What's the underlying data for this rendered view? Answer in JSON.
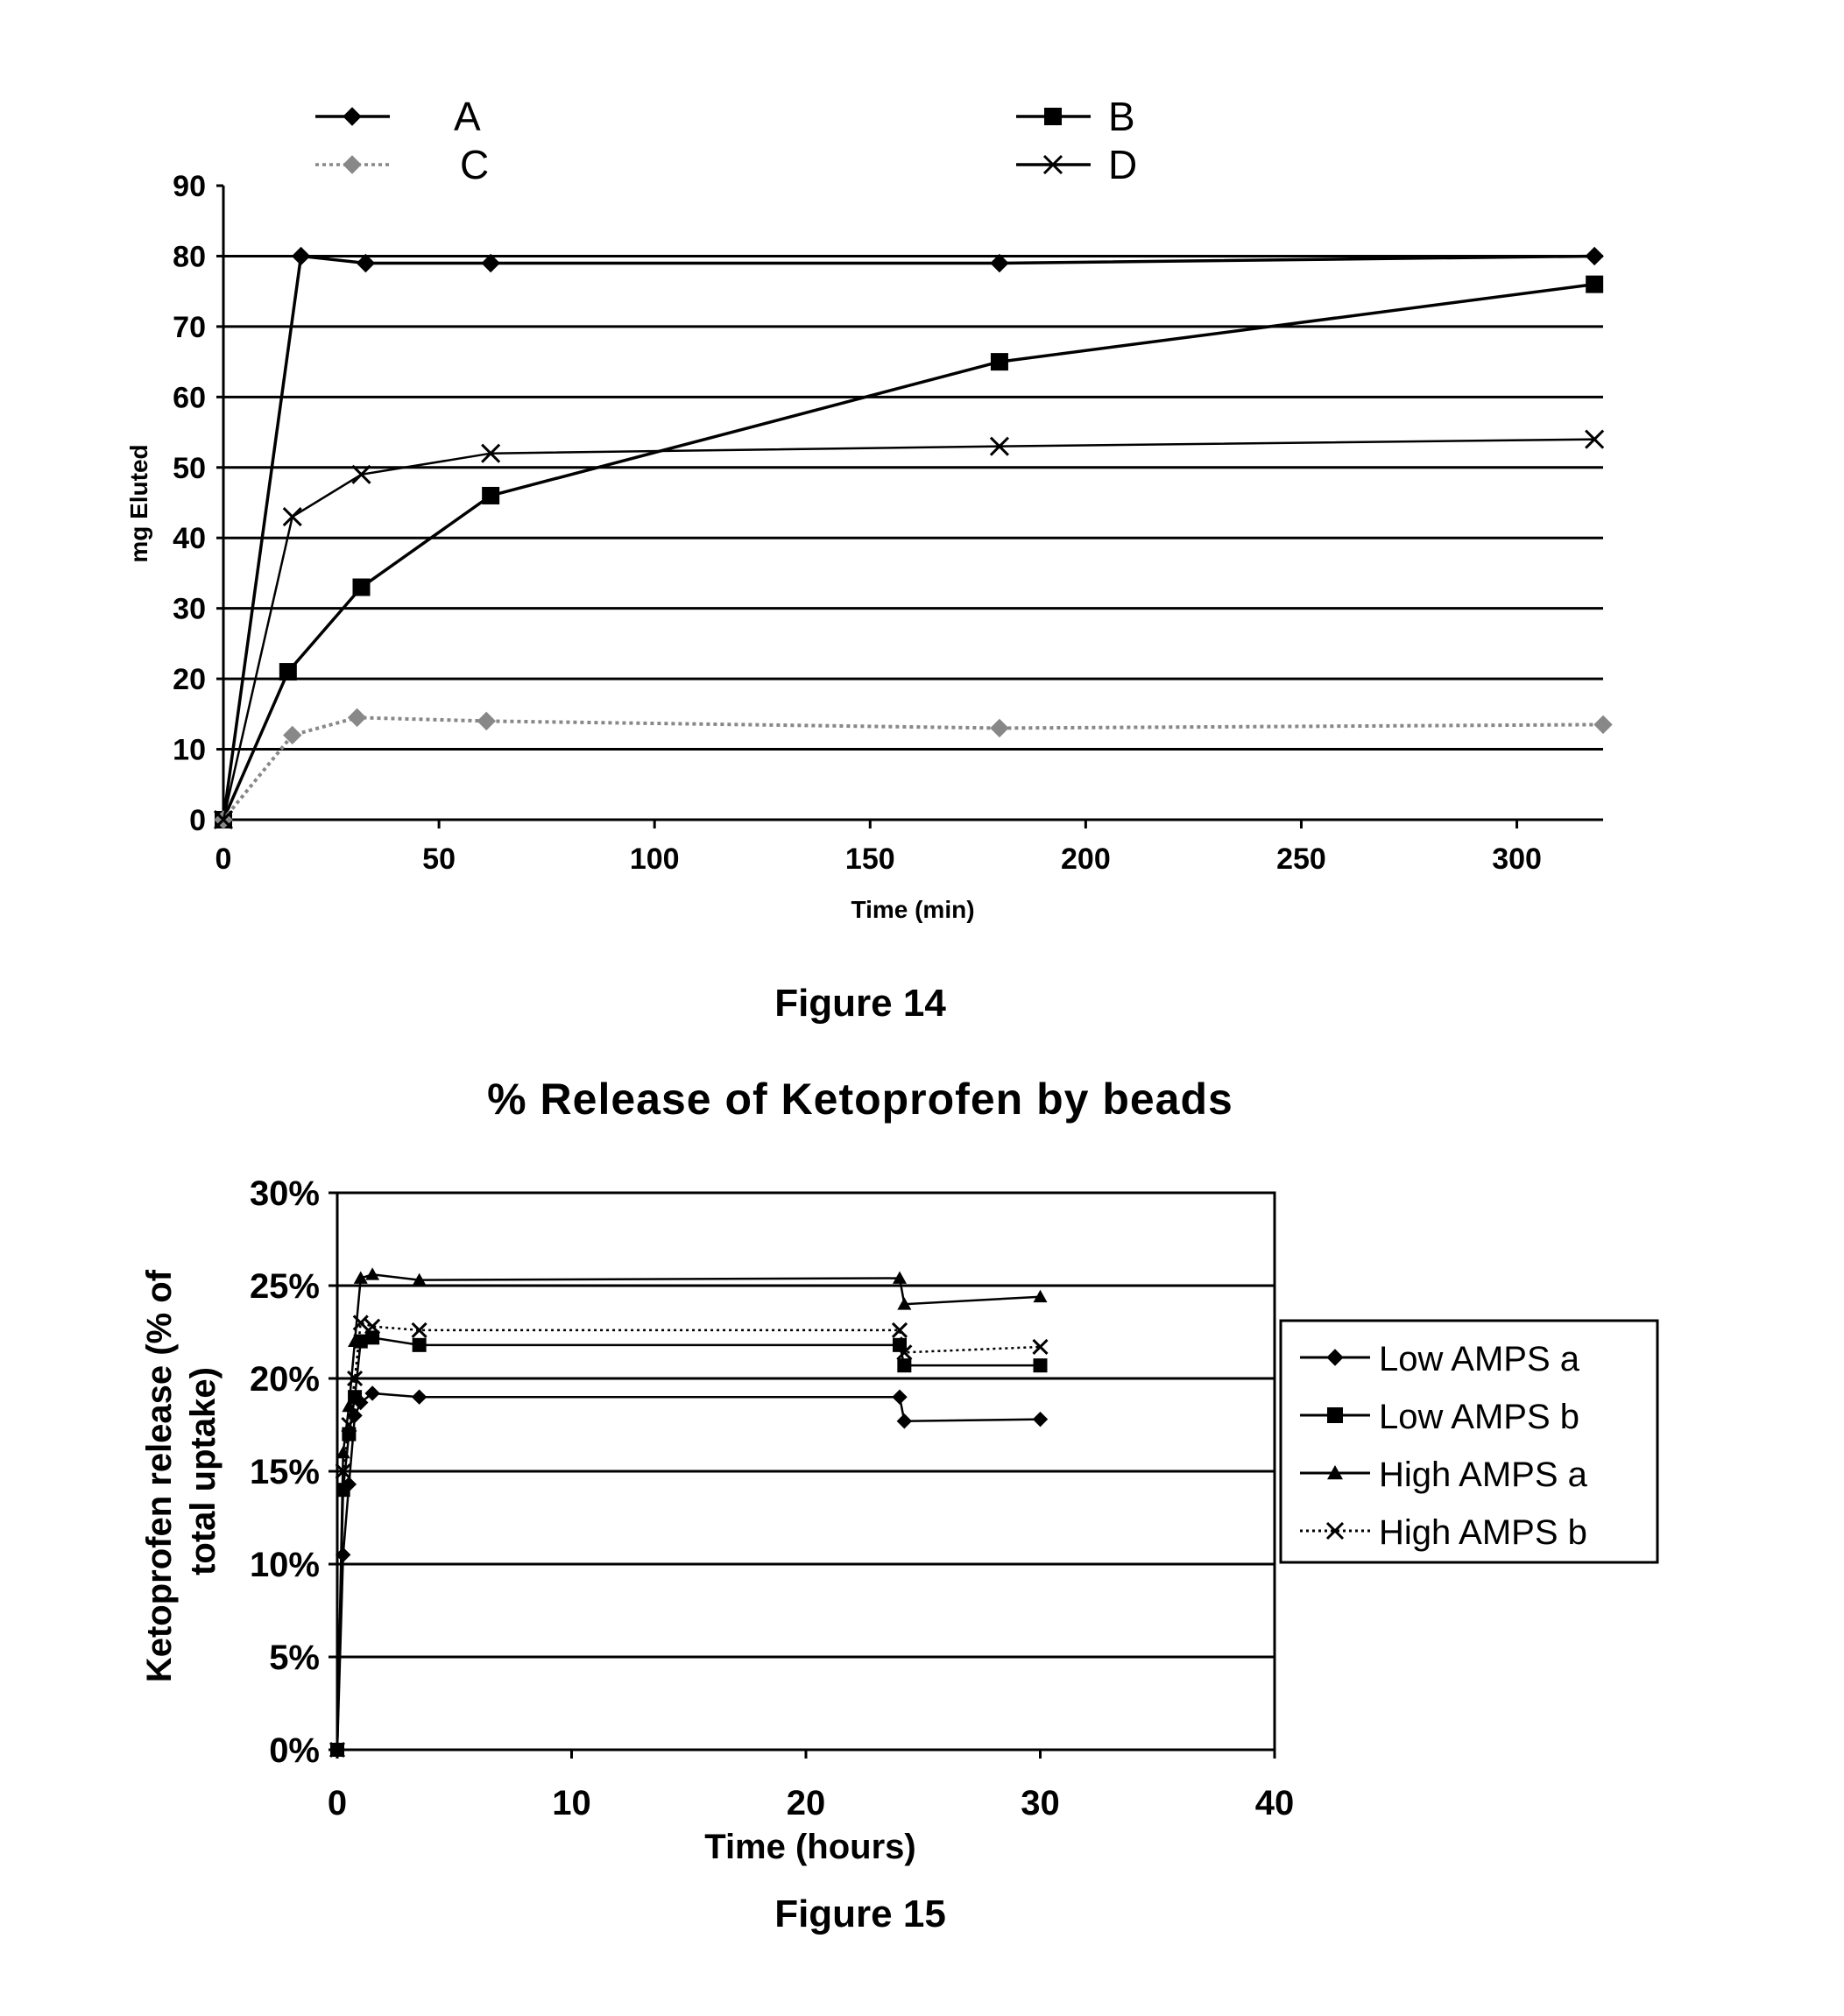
{
  "chart_data": [
    {
      "type": "line",
      "caption": "Figure 14",
      "title": "",
      "xlabel": "Time (min)",
      "ylabel": "mg Eluted",
      "xlim": [
        0,
        320
      ],
      "ylim": [
        0,
        90
      ],
      "xticks": [
        "0",
        "50",
        "100",
        "150",
        "200",
        "250",
        "300"
      ],
      "yticks": [
        "0",
        "10",
        "20",
        "30",
        "40",
        "50",
        "60",
        "70",
        "80",
        "90"
      ],
      "grid": true,
      "legend_position": "top",
      "series": [
        {
          "name": "A",
          "color": "#000000",
          "marker": "diamond",
          "line": "solid",
          "points": [
            [
              0,
              0
            ],
            [
              18,
              80
            ],
            [
              33,
              79
            ],
            [
              62,
              79
            ],
            [
              180,
              79
            ],
            [
              318,
              80
            ]
          ]
        },
        {
          "name": "B",
          "color": "#000000",
          "marker": "square",
          "line": "solid",
          "points": [
            [
              0,
              0
            ],
            [
              15,
              21
            ],
            [
              32,
              33
            ],
            [
              62,
              46
            ],
            [
              180,
              65
            ],
            [
              318,
              76
            ]
          ]
        },
        {
          "name": "C",
          "color": "#888888",
          "marker": "diamond",
          "line": "dotted",
          "points": [
            [
              0,
              0
            ],
            [
              16,
              12
            ],
            [
              31,
              14.5
            ],
            [
              61,
              14
            ],
            [
              180,
              13
            ],
            [
              320,
              13.5
            ]
          ]
        },
        {
          "name": "D",
          "color": "#000000",
          "marker": "x",
          "line": "thin",
          "points": [
            [
              0,
              0
            ],
            [
              16,
              43
            ],
            [
              32,
              49
            ],
            [
              62,
              52
            ],
            [
              180,
              53
            ],
            [
              318,
              54
            ]
          ]
        }
      ]
    },
    {
      "type": "line",
      "caption": "Figure 15",
      "title": "% Release of Ketoprofen by beads",
      "xlabel": "Time (hours)",
      "ylabel": "Ketoprofen release (% of total uptake)",
      "xlim": [
        0,
        40
      ],
      "ylim": [
        0,
        0.3
      ],
      "xticks": [
        "0",
        "10",
        "20",
        "30",
        "40"
      ],
      "yticks": [
        "0%",
        "5%",
        "10%",
        "15%",
        "20%",
        "25%",
        "30%"
      ],
      "grid": true,
      "legend_position": "right",
      "series": [
        {
          "name": "Low AMPS a",
          "color": "#000000",
          "marker": "diamond",
          "line": "solid",
          "points": [
            [
              0,
              0
            ],
            [
              0.25,
              0.105
            ],
            [
              0.5,
              0.143
            ],
            [
              0.75,
              0.18
            ],
            [
              1,
              0.187
            ],
            [
              1.5,
              0.192
            ],
            [
              3.5,
              0.19
            ],
            [
              24,
              0.19
            ],
            [
              24.2,
              0.177
            ],
            [
              30,
              0.178
            ]
          ]
        },
        {
          "name": "Low AMPS b",
          "color": "#000000",
          "marker": "square",
          "line": "solid",
          "points": [
            [
              0,
              0
            ],
            [
              0.25,
              0.14
            ],
            [
              0.5,
              0.17
            ],
            [
              0.75,
              0.19
            ],
            [
              1,
              0.22
            ],
            [
              1.5,
              0.222
            ],
            [
              3.5,
              0.218
            ],
            [
              24,
              0.218
            ],
            [
              24.2,
              0.207
            ],
            [
              30,
              0.207
            ]
          ]
        },
        {
          "name": "High AMPS a",
          "color": "#000000",
          "marker": "triangle",
          "line": "solid",
          "points": [
            [
              0,
              0
            ],
            [
              0.25,
              0.16
            ],
            [
              0.5,
              0.185
            ],
            [
              0.75,
              0.22
            ],
            [
              1,
              0.254
            ],
            [
              1.5,
              0.256
            ],
            [
              3.5,
              0.253
            ],
            [
              24,
              0.254
            ],
            [
              24.2,
              0.24
            ],
            [
              30,
              0.244
            ]
          ]
        },
        {
          "name": "High AMPS b",
          "color": "#000000",
          "marker": "x",
          "line": "dotted",
          "points": [
            [
              0,
              0
            ],
            [
              0.25,
              0.15
            ],
            [
              0.5,
              0.175
            ],
            [
              0.75,
              0.2
            ],
            [
              1,
              0.23
            ],
            [
              1.5,
              0.228
            ],
            [
              3.5,
              0.226
            ],
            [
              24,
              0.226
            ],
            [
              24.2,
              0.214
            ],
            [
              30,
              0.217
            ]
          ]
        }
      ]
    }
  ]
}
